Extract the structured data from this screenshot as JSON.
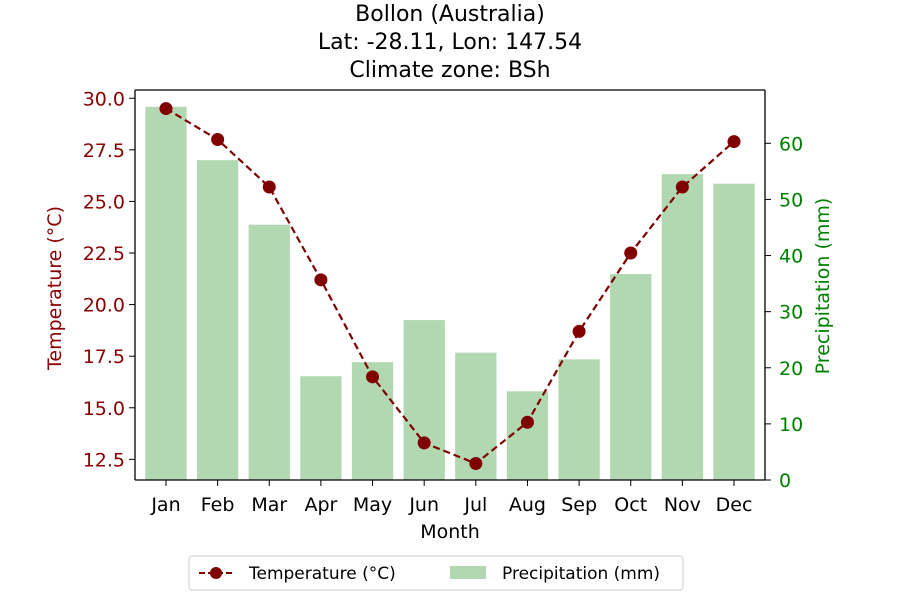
{
  "chart_data": {
    "type": "bar+line",
    "title_lines": [
      "Bollon (Australia)",
      "Lat: -28.11, Lon: 147.54",
      "Climate zone: BSh"
    ],
    "xlabel": "Month",
    "ylabel_left": "Temperature (°C)",
    "ylabel_right": "Precipitation (mm)",
    "categories": [
      "Jan",
      "Feb",
      "Mar",
      "Apr",
      "May",
      "Jun",
      "Jul",
      "Aug",
      "Sep",
      "Oct",
      "Nov",
      "Dec"
    ],
    "temperature": {
      "name": "Temperature (°C)",
      "values": [
        29.5,
        28.0,
        25.7,
        21.2,
        16.5,
        13.3,
        12.3,
        14.3,
        18.7,
        22.5,
        25.7,
        27.9
      ],
      "color": "#800000"
    },
    "precipitation": {
      "name": "Precipitation (mm)",
      "values": [
        66.5,
        57.0,
        45.5,
        18.5,
        21.0,
        28.5,
        22.7,
        15.8,
        21.5,
        36.7,
        54.5,
        52.8
      ],
      "color": "#b2d8b2"
    },
    "ylim_left": [
      11.5,
      30.4
    ],
    "ylim_right": [
      0,
      69.5
    ],
    "left_ticks": [
      "12.5",
      "15.0",
      "17.5",
      "20.0",
      "22.5",
      "25.0",
      "27.5",
      "30.0"
    ],
    "right_ticks": [
      "0",
      "10",
      "20",
      "30",
      "40",
      "50",
      "60"
    ],
    "left_axis_color": "#8b0000",
    "right_axis_color": "#008000",
    "legend_position": "bottom-center",
    "grid": false
  }
}
